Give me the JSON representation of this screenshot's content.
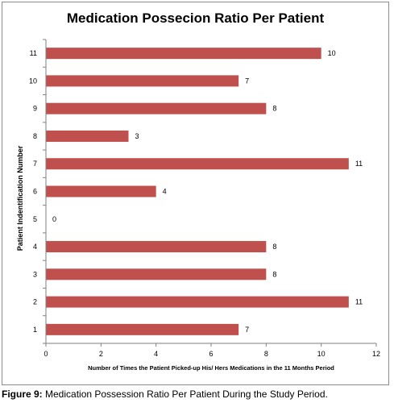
{
  "chart_data": {
    "type": "bar",
    "orientation": "horizontal",
    "title": "Medication Possecion Ratio Per Patient",
    "xlabel": "Number of Times the Patient Picked-up His/ Hers Medications in the 11 Months Period",
    "ylabel": "Patient Indentification Number",
    "categories": [
      "1",
      "2",
      "3",
      "4",
      "5",
      "6",
      "7",
      "8",
      "9",
      "10",
      "11"
    ],
    "values": [
      7,
      11,
      8,
      8,
      0,
      4,
      11,
      3,
      8,
      7,
      10
    ],
    "xlim": [
      0,
      12
    ],
    "xticks": [
      "0",
      "2",
      "4",
      "6",
      "8",
      "10",
      "12"
    ],
    "grid": false,
    "legend": "none",
    "bar_color": "#c0504d"
  },
  "caption": {
    "label": "Figure 9:",
    "text": " Medication Possession Ratio Per Patient During the Study Period."
  }
}
